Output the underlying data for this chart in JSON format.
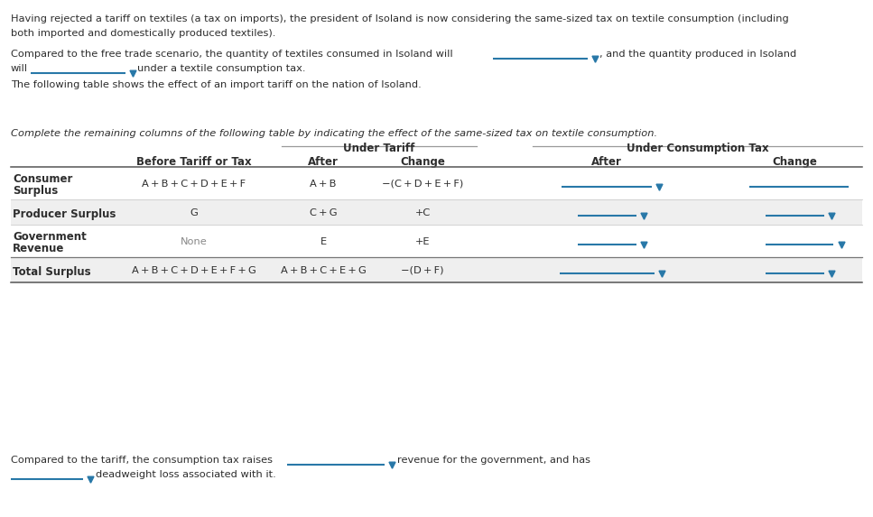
{
  "bg_color": "#ffffff",
  "text_color": "#2d2d2d",
  "blue": "#2878a8",
  "gray_row": "#efefef",
  "para1_line1": "Having rejected a tariff on textiles (a tax on imports), the president of Isoland is now considering the same-sized tax on textile consumption (including",
  "para1_line2": "both imported and domestically produced textiles).",
  "para2_part1": "Compared to the free trade scenario, the quantity of textiles consumed in Isoland will",
  "para2_part2": ", and the quantity produced in Isoland",
  "para2_line2_part1": "will",
  "para2_line2_part2": "under a textile consumption tax.",
  "para3": "The following table shows the effect of an import tariff on the nation of Isoland.",
  "italic_instr": "Complete the remaining columns of the following table by indicating the effect of the same-sized tax on textile consumption.",
  "header_tariff": "Under Tariff",
  "header_tax": "Under Consumption Tax",
  "col_before": "Before Tariff or Tax",
  "col_after": "After",
  "col_change": "Change",
  "row1_label1": "Consumer",
  "row1_label2": "Surplus",
  "row1_before": "A + B + C + D + E + F",
  "row1_after": "A + B",
  "row1_change": "−(C + D + E + F)",
  "row2_label": "Producer Surplus",
  "row2_before": "G",
  "row2_after": "C + G",
  "row2_change": "+C",
  "row3_label1": "Government",
  "row3_label2": "Revenue",
  "row3_before": "None",
  "row3_after": "E",
  "row3_change": "+E",
  "row4_label": "Total Surplus",
  "row4_before": "A + B + C + D + E + F + G",
  "row4_after": "A + B + C + E + G",
  "row4_change": "−(D + F)",
  "footer1_part1": "Compared to the tariff, the consumption tax raises",
  "footer1_part2": "revenue for the government, and has",
  "footer2_part2": "deadweight loss associated with it."
}
